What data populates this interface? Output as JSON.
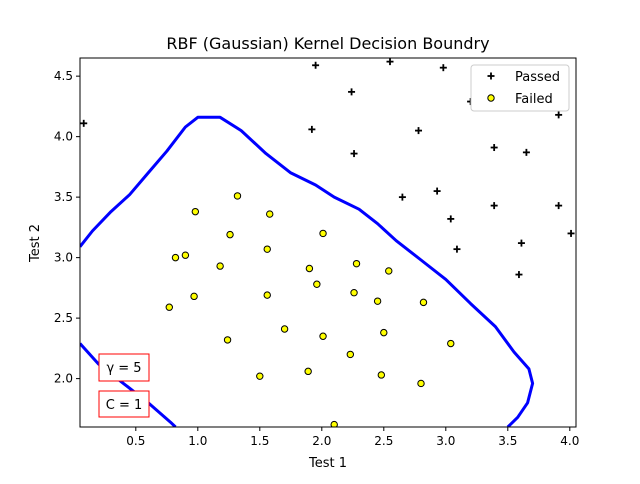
{
  "chart_data": {
    "type": "scatter",
    "title": "RBF (Gaussian)  Kernel Decision Boundry",
    "xlabel": "Test 1",
    "ylabel": "Test 2",
    "xlim": [
      0.05,
      4.05
    ],
    "ylim": [
      1.6,
      4.65
    ],
    "x_ticks": [
      0.5,
      1.0,
      1.5,
      2.0,
      2.5,
      3.0,
      3.5,
      4.0
    ],
    "y_ticks": [
      2.0,
      2.5,
      3.0,
      3.5,
      4.0,
      4.5
    ],
    "x_tick_labels": [
      "0.5",
      "1.0",
      "1.5",
      "2.0",
      "2.5",
      "3.0",
      "3.5",
      "4.0"
    ],
    "y_tick_labels": [
      "2.0",
      "2.5",
      "3.0",
      "3.5",
      "4.0",
      "4.5"
    ],
    "grid": false,
    "legend": {
      "placement": "top-right",
      "entries": [
        "Passed",
        "Failed"
      ]
    },
    "series": [
      {
        "name": "Passed",
        "marker": "plus",
        "color": "#000000",
        "points": [
          [
            0.08,
            4.11
          ],
          [
            1.95,
            4.59
          ],
          [
            2.55,
            4.62
          ],
          [
            2.98,
            4.57
          ],
          [
            2.24,
            4.37
          ],
          [
            3.2,
            4.29
          ],
          [
            1.92,
            4.06
          ],
          [
            2.78,
            4.05
          ],
          [
            3.39,
            3.91
          ],
          [
            3.91,
            4.18
          ],
          [
            2.26,
            3.86
          ],
          [
            3.65,
            3.87
          ],
          [
            2.93,
            3.55
          ],
          [
            2.65,
            3.5
          ],
          [
            3.39,
            3.43
          ],
          [
            3.91,
            3.43
          ],
          [
            3.04,
            3.32
          ],
          [
            4.01,
            3.2
          ],
          [
            3.61,
            3.12
          ],
          [
            3.09,
            3.07
          ],
          [
            3.59,
            2.86
          ]
        ]
      },
      {
        "name": "Failed",
        "marker": "circle",
        "color": "#ffff00",
        "edgecolor": "#000000",
        "points": [
          [
            1.32,
            3.51
          ],
          [
            0.98,
            3.38
          ],
          [
            1.58,
            3.36
          ],
          [
            1.26,
            3.19
          ],
          [
            2.01,
            3.2
          ],
          [
            1.56,
            3.07
          ],
          [
            0.9,
            3.02
          ],
          [
            0.82,
            3.0
          ],
          [
            1.18,
            2.93
          ],
          [
            2.28,
            2.95
          ],
          [
            1.9,
            2.91
          ],
          [
            2.54,
            2.89
          ],
          [
            1.96,
            2.78
          ],
          [
            2.26,
            2.71
          ],
          [
            0.97,
            2.68
          ],
          [
            1.56,
            2.69
          ],
          [
            2.45,
            2.64
          ],
          [
            2.82,
            2.63
          ],
          [
            0.77,
            2.59
          ],
          [
            1.7,
            2.41
          ],
          [
            2.01,
            2.35
          ],
          [
            2.5,
            2.38
          ],
          [
            1.24,
            2.32
          ],
          [
            3.04,
            2.29
          ],
          [
            2.23,
            2.2
          ],
          [
            1.89,
            2.06
          ],
          [
            1.5,
            2.02
          ],
          [
            2.48,
            2.03
          ],
          [
            2.8,
            1.96
          ],
          [
            2.1,
            1.62
          ]
        ]
      }
    ],
    "decision_boundary": {
      "color": "#0000ff",
      "upper": [
        [
          0.05,
          3.09
        ],
        [
          0.15,
          3.22
        ],
        [
          0.3,
          3.38
        ],
        [
          0.45,
          3.52
        ],
        [
          0.6,
          3.7
        ],
        [
          0.75,
          3.88
        ],
        [
          0.9,
          4.08
        ],
        [
          1.0,
          4.16
        ],
        [
          1.18,
          4.16
        ],
        [
          1.35,
          4.05
        ],
        [
          1.55,
          3.86
        ],
        [
          1.75,
          3.7
        ],
        [
          1.95,
          3.6
        ],
        [
          2.1,
          3.5
        ],
        [
          2.3,
          3.4
        ],
        [
          2.45,
          3.28
        ],
        [
          2.6,
          3.14
        ],
        [
          2.8,
          2.98
        ],
        [
          3.0,
          2.82
        ],
        [
          3.2,
          2.62
        ],
        [
          3.4,
          2.43
        ],
        [
          3.55,
          2.22
        ],
        [
          3.67,
          2.08
        ],
        [
          3.7,
          1.96
        ],
        [
          3.66,
          1.8
        ],
        [
          3.58,
          1.68
        ],
        [
          3.5,
          1.6
        ]
      ],
      "lower": [
        [
          0.05,
          2.29
        ],
        [
          0.2,
          2.12
        ],
        [
          0.4,
          1.96
        ],
        [
          0.6,
          1.8
        ],
        [
          0.78,
          1.64
        ],
        [
          0.82,
          1.6
        ]
      ]
    },
    "annotations": [
      "γ = 5",
      "C = 1"
    ]
  }
}
